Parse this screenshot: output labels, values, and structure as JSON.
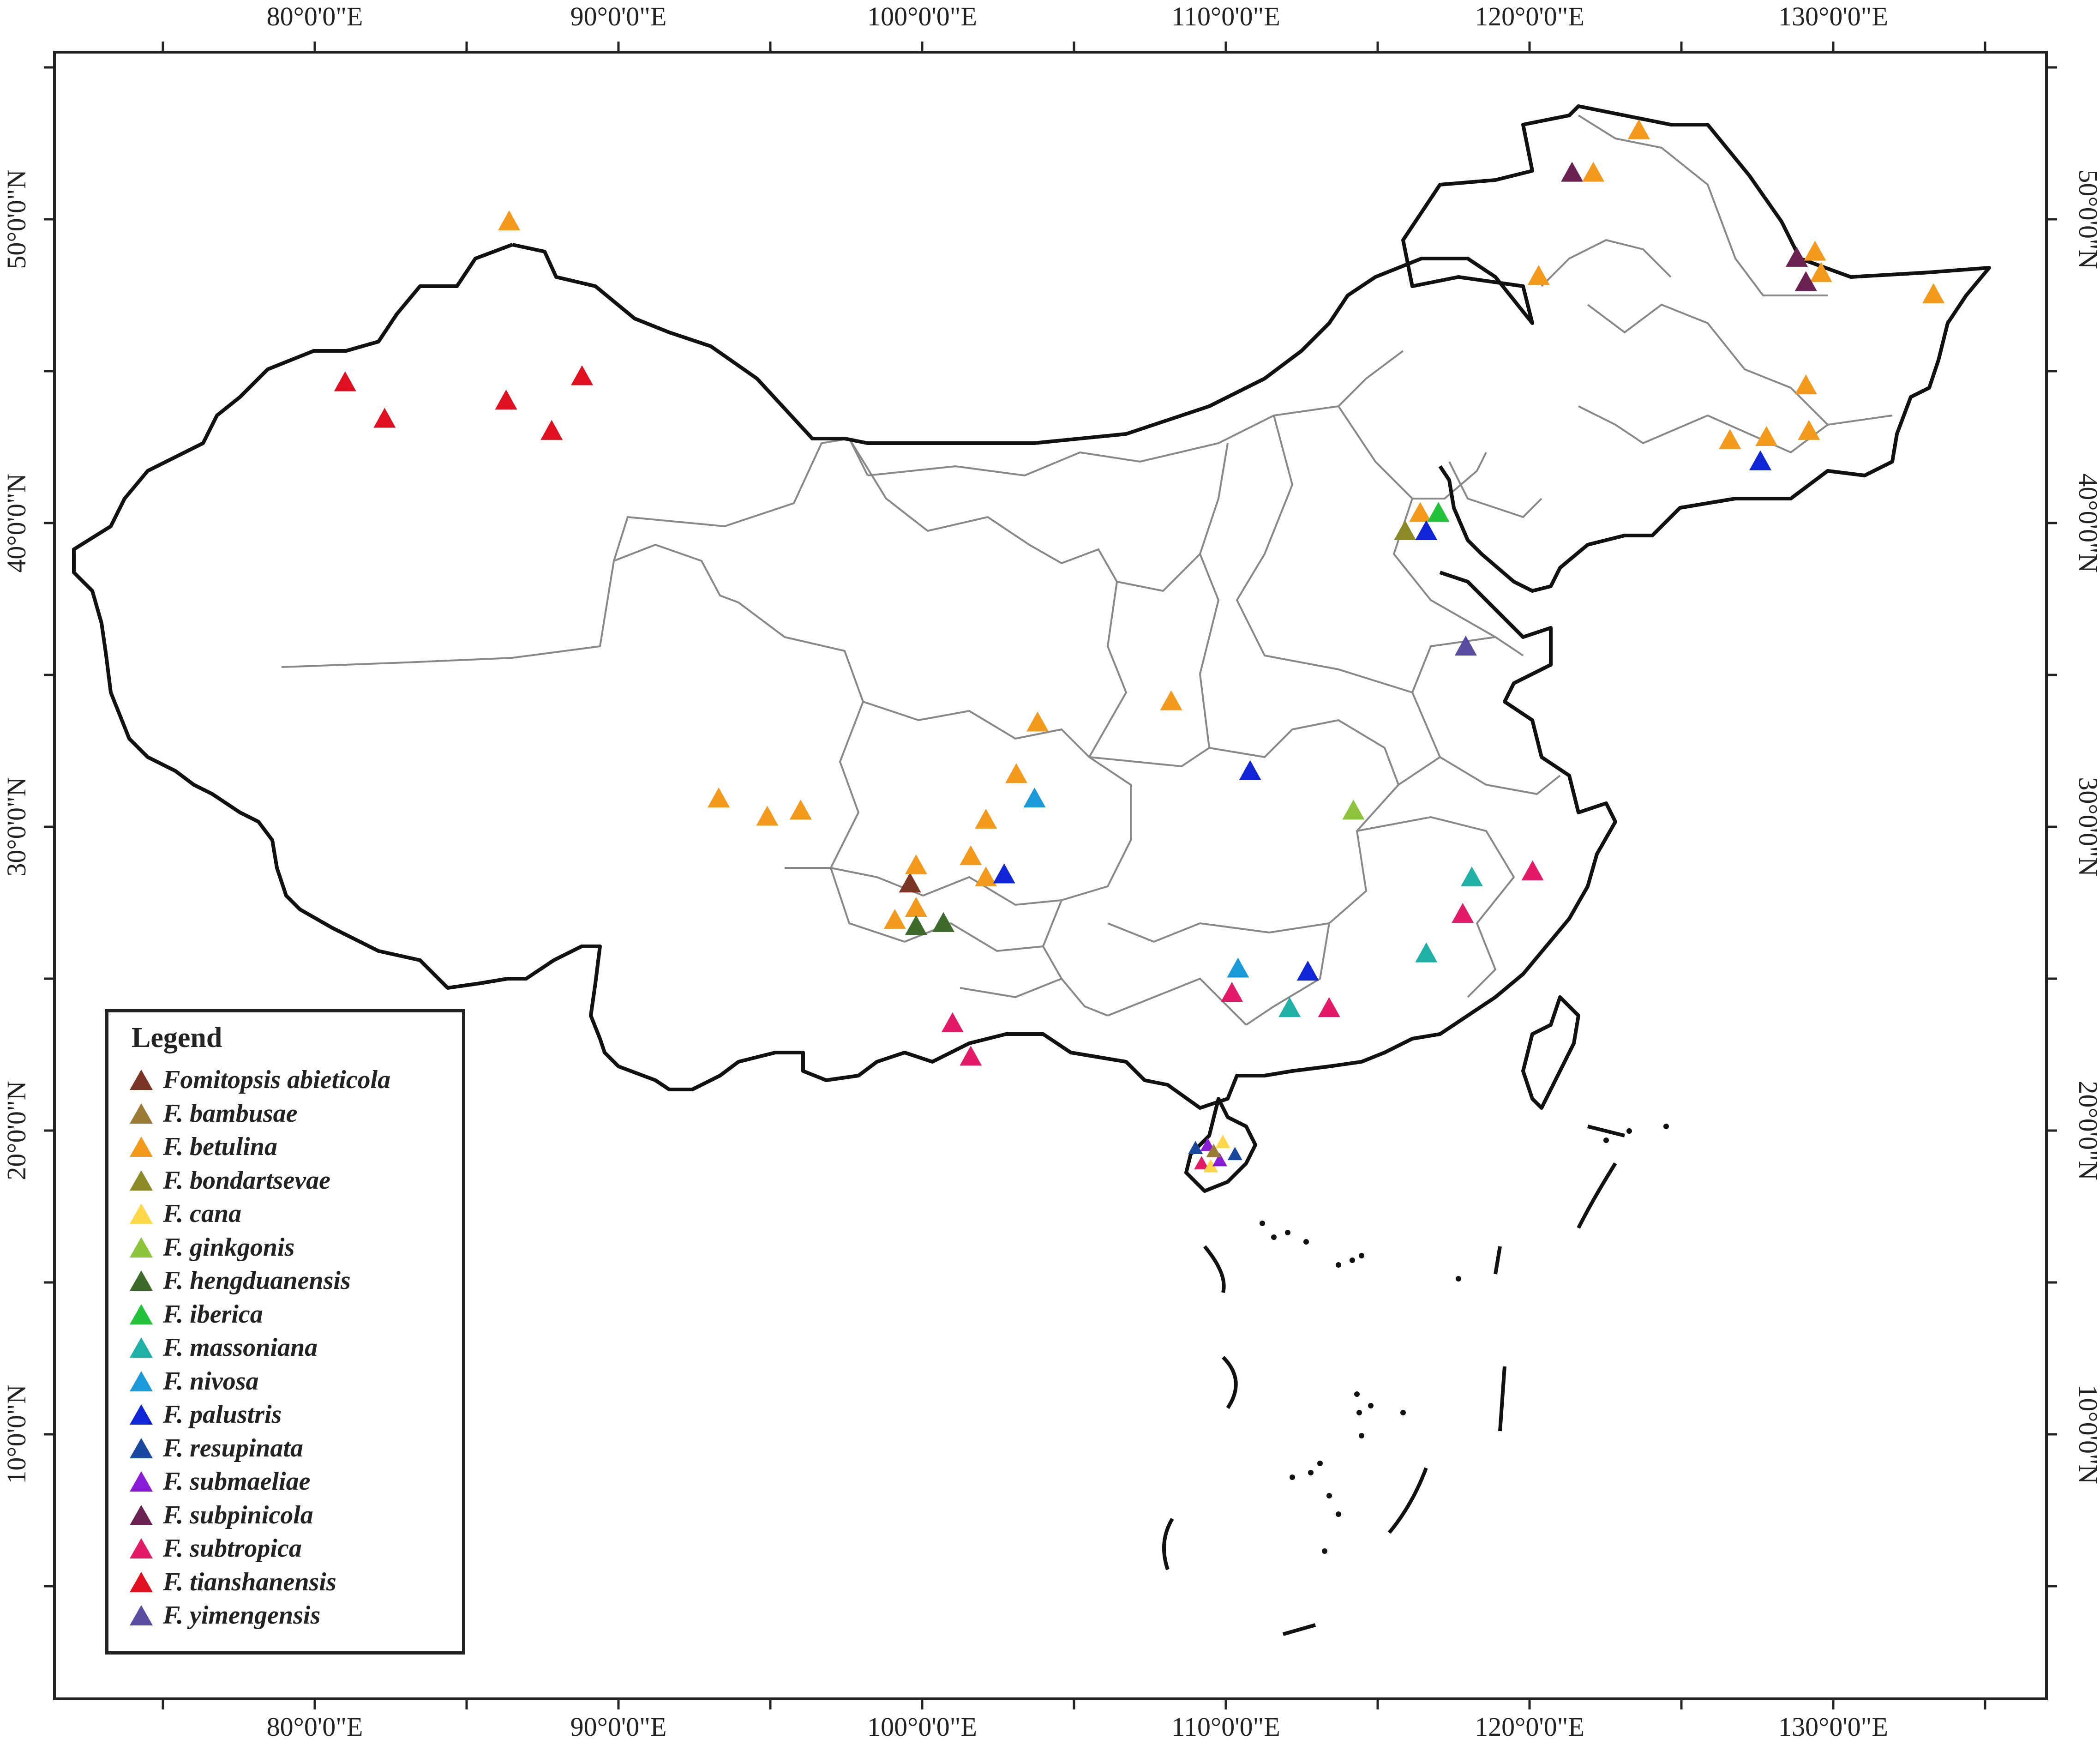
{
  "legend": {
    "title": "Legend",
    "items": [
      {
        "label": "Fomitopsis abieticola",
        "color": "#7a3524"
      },
      {
        "label": "F. bambusae",
        "color": "#9a7a34"
      },
      {
        "label": "F. betulina",
        "color": "#f39a1c"
      },
      {
        "label": "F. bondartsevae",
        "color": "#8c8a26"
      },
      {
        "label": "F. cana",
        "color": "#ffd84a"
      },
      {
        "label": "F. ginkgonis",
        "color": "#8dc43c"
      },
      {
        "label": "F. hengduanensis",
        "color": "#3e6b2c"
      },
      {
        "label": "F. iberica",
        "color": "#22c33a"
      },
      {
        "label": "F. massoniana",
        "color": "#1fb0a6"
      },
      {
        "label": "F. nivosa",
        "color": "#1a9ad8"
      },
      {
        "label": "F. palustris",
        "color": "#1026d6"
      },
      {
        "label": "F. resupinata",
        "color": "#1a48a0"
      },
      {
        "label": "F. submaeliae",
        "color": "#8a1ed8"
      },
      {
        "label": "F. subpinicola",
        "color": "#6a2050"
      },
      {
        "label": "F. subtropica",
        "color": "#e21a68"
      },
      {
        "label": "F. tianshanensis",
        "color": "#e01020"
      },
      {
        "label": "F. yimengensis",
        "color": "#5a4aa0"
      }
    ]
  },
  "axes": {
    "lon_labels": [
      "80°0'0\"E",
      "90°0'0\"E",
      "100°0'0\"E",
      "110°0'0\"E",
      "120°0'0\"E",
      "130°0'0\"E"
    ],
    "lat_labels": [
      "50°0'0\"N",
      "40°0'0\"N",
      "30°0'0\"N",
      "20°0'0\"N",
      "10°0'0\"N"
    ],
    "lon_values": [
      80,
      90,
      100,
      110,
      120,
      130
    ],
    "lat_values": [
      50,
      40,
      30,
      20,
      10
    ]
  },
  "sites": [
    {
      "species": 2,
      "lon": 86.4,
      "lat": 49.9
    },
    {
      "species": 15,
      "lon": 81.0,
      "lat": 44.6
    },
    {
      "species": 15,
      "lon": 82.3,
      "lat": 43.4
    },
    {
      "species": 15,
      "lon": 86.3,
      "lat": 44.0
    },
    {
      "species": 15,
      "lon": 87.8,
      "lat": 43.0
    },
    {
      "species": 15,
      "lon": 88.8,
      "lat": 44.8
    },
    {
      "species": 2,
      "lon": 93.3,
      "lat": 30.9
    },
    {
      "species": 2,
      "lon": 94.9,
      "lat": 30.3
    },
    {
      "species": 2,
      "lon": 96.0,
      "lat": 30.5
    },
    {
      "species": 0,
      "lon": 99.6,
      "lat": 28.1
    },
    {
      "species": 2,
      "lon": 99.8,
      "lat": 28.7
    },
    {
      "species": 2,
      "lon": 99.8,
      "lat": 27.3
    },
    {
      "species": 2,
      "lon": 99.1,
      "lat": 26.9
    },
    {
      "species": 6,
      "lon": 99.8,
      "lat": 26.7
    },
    {
      "species": 6,
      "lon": 100.7,
      "lat": 26.8
    },
    {
      "species": 2,
      "lon": 101.6,
      "lat": 29.0
    },
    {
      "species": 2,
      "lon": 102.1,
      "lat": 30.2
    },
    {
      "species": 2,
      "lon": 102.1,
      "lat": 28.3
    },
    {
      "species": 10,
      "lon": 102.7,
      "lat": 28.4
    },
    {
      "species": 2,
      "lon": 103.1,
      "lat": 31.7
    },
    {
      "species": 9,
      "lon": 103.7,
      "lat": 30.9
    },
    {
      "species": 2,
      "lon": 103.8,
      "lat": 33.4
    },
    {
      "species": 2,
      "lon": 108.2,
      "lat": 34.1
    },
    {
      "species": 10,
      "lon": 110.8,
      "lat": 31.8
    },
    {
      "species": 5,
      "lon": 114.2,
      "lat": 30.5
    },
    {
      "species": 14,
      "lon": 101.0,
      "lat": 23.5
    },
    {
      "species": 14,
      "lon": 101.6,
      "lat": 22.4
    },
    {
      "species": 9,
      "lon": 110.4,
      "lat": 25.3
    },
    {
      "species": 14,
      "lon": 110.2,
      "lat": 24.5
    },
    {
      "species": 8,
      "lon": 112.1,
      "lat": 24.0
    },
    {
      "species": 10,
      "lon": 112.7,
      "lat": 25.2
    },
    {
      "species": 14,
      "lon": 113.4,
      "lat": 24.0
    },
    {
      "species": 8,
      "lon": 116.6,
      "lat": 25.8
    },
    {
      "species": 14,
      "lon": 117.8,
      "lat": 27.1
    },
    {
      "species": 8,
      "lon": 118.1,
      "lat": 28.3
    },
    {
      "species": 14,
      "lon": 120.1,
      "lat": 28.5
    },
    {
      "species": 16,
      "lon": 117.9,
      "lat": 35.9
    },
    {
      "species": 2,
      "lon": 116.4,
      "lat": 40.3
    },
    {
      "species": 7,
      "lon": 117.0,
      "lat": 40.3
    },
    {
      "species": 3,
      "lon": 115.9,
      "lat": 39.7
    },
    {
      "species": 10,
      "lon": 116.6,
      "lat": 39.7
    },
    {
      "species": 2,
      "lon": 120.3,
      "lat": 48.1
    },
    {
      "species": 13,
      "lon": 121.4,
      "lat": 51.5
    },
    {
      "species": 2,
      "lon": 122.1,
      "lat": 51.5
    },
    {
      "species": 2,
      "lon": 123.6,
      "lat": 52.9
    },
    {
      "species": 13,
      "lon": 128.8,
      "lat": 48.7
    },
    {
      "species": 2,
      "lon": 129.4,
      "lat": 48.9
    },
    {
      "species": 2,
      "lon": 129.6,
      "lat": 48.2
    },
    {
      "species": 13,
      "lon": 129.1,
      "lat": 47.9
    },
    {
      "species": 2,
      "lon": 133.3,
      "lat": 47.5
    },
    {
      "species": 2,
      "lon": 129.1,
      "lat": 44.5
    },
    {
      "species": 2,
      "lon": 129.2,
      "lat": 43.0
    },
    {
      "species": 2,
      "lon": 127.8,
      "lat": 42.8
    },
    {
      "species": 2,
      "lon": 126.6,
      "lat": 42.7
    },
    {
      "species": 10,
      "lon": 127.6,
      "lat": 42.0
    },
    {
      "species": 11,
      "lon": 109.0,
      "lat": 19.4
    },
    {
      "species": 12,
      "lon": 109.4,
      "lat": 19.5
    },
    {
      "species": 4,
      "lon": 109.9,
      "lat": 19.6
    },
    {
      "species": 11,
      "lon": 110.3,
      "lat": 19.2
    },
    {
      "species": 14,
      "lon": 109.2,
      "lat": 18.9
    },
    {
      "species": 4,
      "lon": 109.5,
      "lat": 18.8
    },
    {
      "species": 12,
      "lon": 109.8,
      "lat": 19.0
    },
    {
      "species": 1,
      "lon": 109.6,
      "lat": 19.3
    }
  ]
}
